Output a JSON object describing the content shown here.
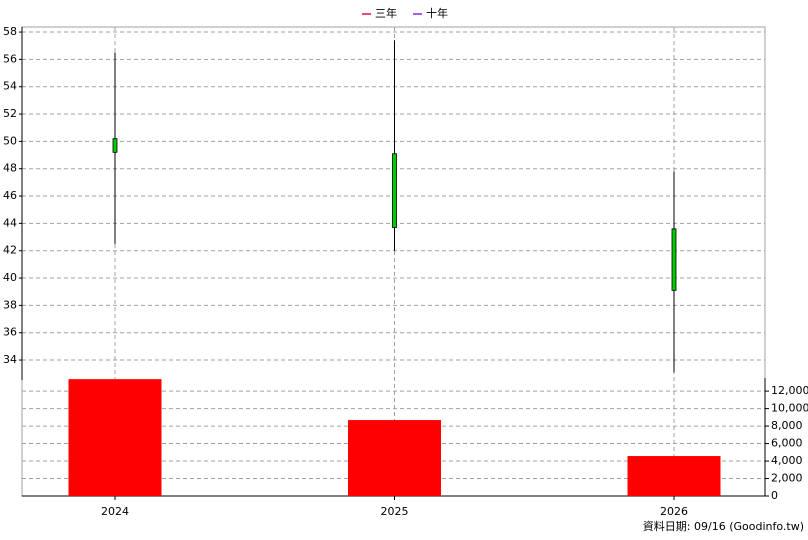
{
  "chart_data": {
    "type": "candlestick",
    "legend": [
      {
        "name": "三年",
        "color": "#dc143c"
      },
      {
        "name": "十年",
        "color": "#8a2be2"
      }
    ],
    "categories": [
      "2024",
      "2025",
      "2026"
    ],
    "open": [
      50.2,
      49.1,
      43.6
    ],
    "high": [
      56.5,
      57.4,
      47.8
    ],
    "low": [
      42.5,
      42.0,
      33.1
    ],
    "close": [
      49.2,
      43.7,
      39.1
    ],
    "body_color": "#00cc00",
    "ylim": [
      32.54,
      58.37
    ],
    "yticks": [
      34,
      36,
      38,
      40,
      42,
      44,
      46,
      48,
      50,
      52,
      54,
      56,
      58
    ],
    "y2lim": [
      0,
      13500
    ],
    "y2ticks": [
      0,
      {
        "value": 2000,
        "label": "2,000"
      },
      {
        "value": 4000,
        "label": "4,000"
      },
      {
        "value": 6000,
        "label": "6,000"
      },
      {
        "value": 8000,
        "label": "8,000"
      },
      {
        "value": 10000,
        "label": "10,000"
      },
      {
        "value": 12000,
        "label": "12,000"
      }
    ],
    "series": [
      {
        "type": "bar",
        "axis": "y2",
        "color": "#ff0000",
        "values": [
          13370,
          8690,
          4570
        ]
      }
    ],
    "grid": true,
    "source": "資料日期: 09/16  (Goodinfo.tw)"
  }
}
